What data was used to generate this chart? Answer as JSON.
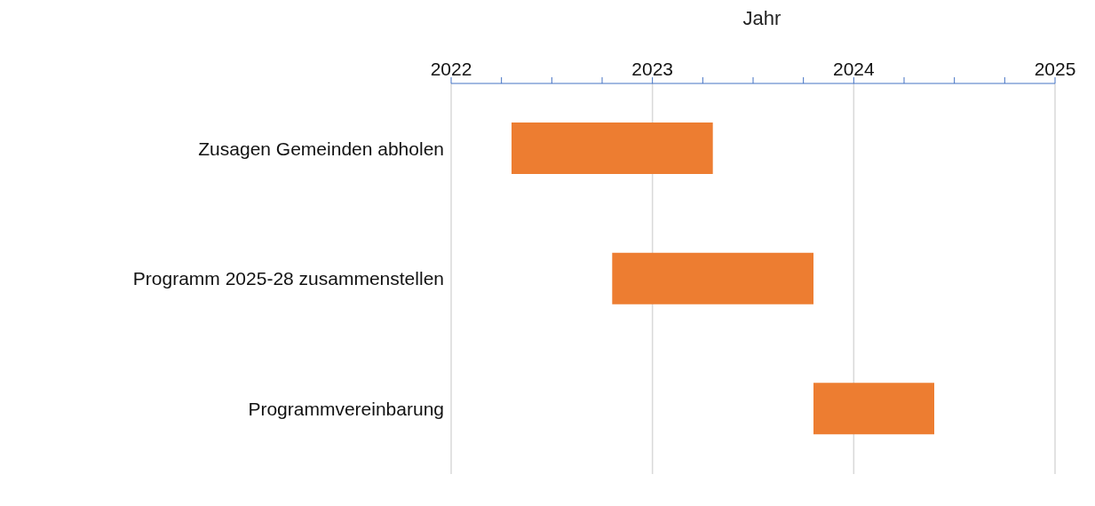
{
  "chart_data": {
    "type": "bar",
    "orientation": "horizontal",
    "xlabel": "Jahr",
    "categories": [
      "Zusagen Gemeinden abholen",
      "Programm 2025-28 zusammenstellen",
      "Programmvereinbarung"
    ],
    "base": [
      2022.3,
      2022.8,
      2023.8
    ],
    "values": [
      1.0,
      1.0,
      0.6
    ],
    "color": "#ed7d31",
    "xlim": [
      2022,
      2025
    ],
    "xticks": [
      2022,
      {
        "value": 2022.25,
        "label": null
      },
      {
        "value": 2022.5,
        "label": null
      },
      {
        "value": 2022.75,
        "label": null
      },
      2023,
      {
        "value": 2023.25,
        "label": null
      },
      {
        "value": 2023.5,
        "label": null
      },
      {
        "value": 2023.75,
        "label": null
      },
      2024,
      {
        "value": 2024.25,
        "label": null
      },
      {
        "value": 2024.5,
        "label": null
      },
      {
        "value": 2024.75,
        "label": null
      },
      2025
    ],
    "grid": "x"
  }
}
